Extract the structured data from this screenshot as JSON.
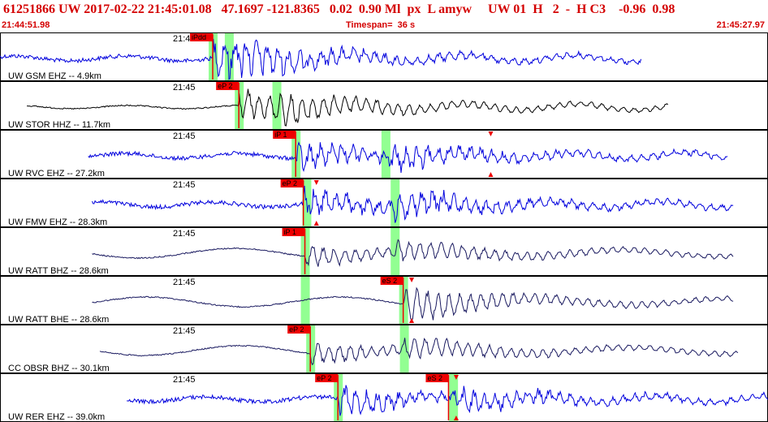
{
  "header": {
    "title": "61251866 UW 2017-02-22 21:45:01.08   47.1697 -121.8365   0.02  0.90 Ml  px  L amyw     UW 01  H   2  -  H C3    -0.96  0.98",
    "start_time": "21:44:51.98",
    "timespan": "Timespan=  36 s",
    "end_time": "21:45:27.97"
  },
  "colors": {
    "header_red": "#d40000",
    "trace_blue": "#0000dd",
    "trace_black": "#000000",
    "trace_navy": "#1a1a60",
    "pick_green": "#7fff7f",
    "pick_red": "#ee0000"
  },
  "panels": [
    {
      "station_label": "UW GSM EHZ -- 4.9km",
      "time_label": "21:45",
      "color": "blue",
      "start_frac": 0.0,
      "end_frac": 0.835,
      "picks": [
        {
          "label": "iPdd",
          "frac": 0.277,
          "up": true
        }
      ],
      "green_bands": [
        0.277,
        0.298
      ],
      "triangles": []
    },
    {
      "station_label": "UW STOR HHZ -- 11.7km",
      "time_label": "21:45",
      "color": "black",
      "start_frac": 0.035,
      "end_frac": 0.87,
      "picks": [
        {
          "label": "eP 2",
          "frac": 0.311,
          "up": false
        }
      ],
      "green_bands": [
        0.311,
        0.36
      ],
      "triangles": []
    },
    {
      "station_label": "UW RVC EHZ -- 27.2km",
      "time_label": "21:45",
      "color": "blue",
      "start_frac": 0.115,
      "end_frac": 0.948,
      "picks": [
        {
          "label": "iP 1",
          "frac": 0.385,
          "up": true
        }
      ],
      "green_bands": [
        0.385,
        0.502
      ],
      "triangles": [
        0.639
      ]
    },
    {
      "station_label": "UW FMW EHZ -- 28.3km",
      "time_label": "21:45",
      "color": "blue",
      "start_frac": 0.12,
      "end_frac": 0.955,
      "picks": [
        {
          "label": "eP 2",
          "frac": 0.395,
          "up": false
        }
      ],
      "green_bands": [
        0.399,
        0.514
      ],
      "triangles": [
        0.412
      ]
    },
    {
      "station_label": "UW RATT BHZ -- 28.6km",
      "time_label": "21:45",
      "color": "navy",
      "start_frac": 0.12,
      "end_frac": 0.955,
      "picks": [
        {
          "label": "iP 1",
          "frac": 0.397,
          "up": true
        }
      ],
      "green_bands": [
        0.397,
        0.514
      ],
      "triangles": []
    },
    {
      "station_label": "UW RATT BHE -- 28.6km",
      "time_label": "21:45",
      "color": "navy",
      "start_frac": 0.12,
      "end_frac": 0.955,
      "picks": [
        {
          "label": "eS 2",
          "frac": 0.525,
          "up": false
        }
      ],
      "green_bands": [
        0.397,
        0.525
      ],
      "triangles": [
        0.536
      ]
    },
    {
      "station_label": "CC OBSR BHZ -- 30.1km",
      "time_label": "21:45",
      "color": "navy",
      "start_frac": 0.13,
      "end_frac": 0.962,
      "picks": [
        {
          "label": "eP 2",
          "frac": 0.404,
          "up": false
        }
      ],
      "green_bands": [
        0.404,
        0.526
      ],
      "triangles": []
    },
    {
      "station_label": "UW RER EHZ -- 39.0km",
      "time_label": "21:45",
      "color": "blue",
      "start_frac": 0.165,
      "end_frac": 1.0,
      "picks": [
        {
          "label": "eP 2",
          "frac": 0.44,
          "up": false
        },
        {
          "label": "eS 2",
          "frac": 0.584,
          "up": false
        }
      ],
      "green_bands": [
        0.44,
        0.59
      ],
      "triangles": [
        0.594
      ]
    }
  ]
}
